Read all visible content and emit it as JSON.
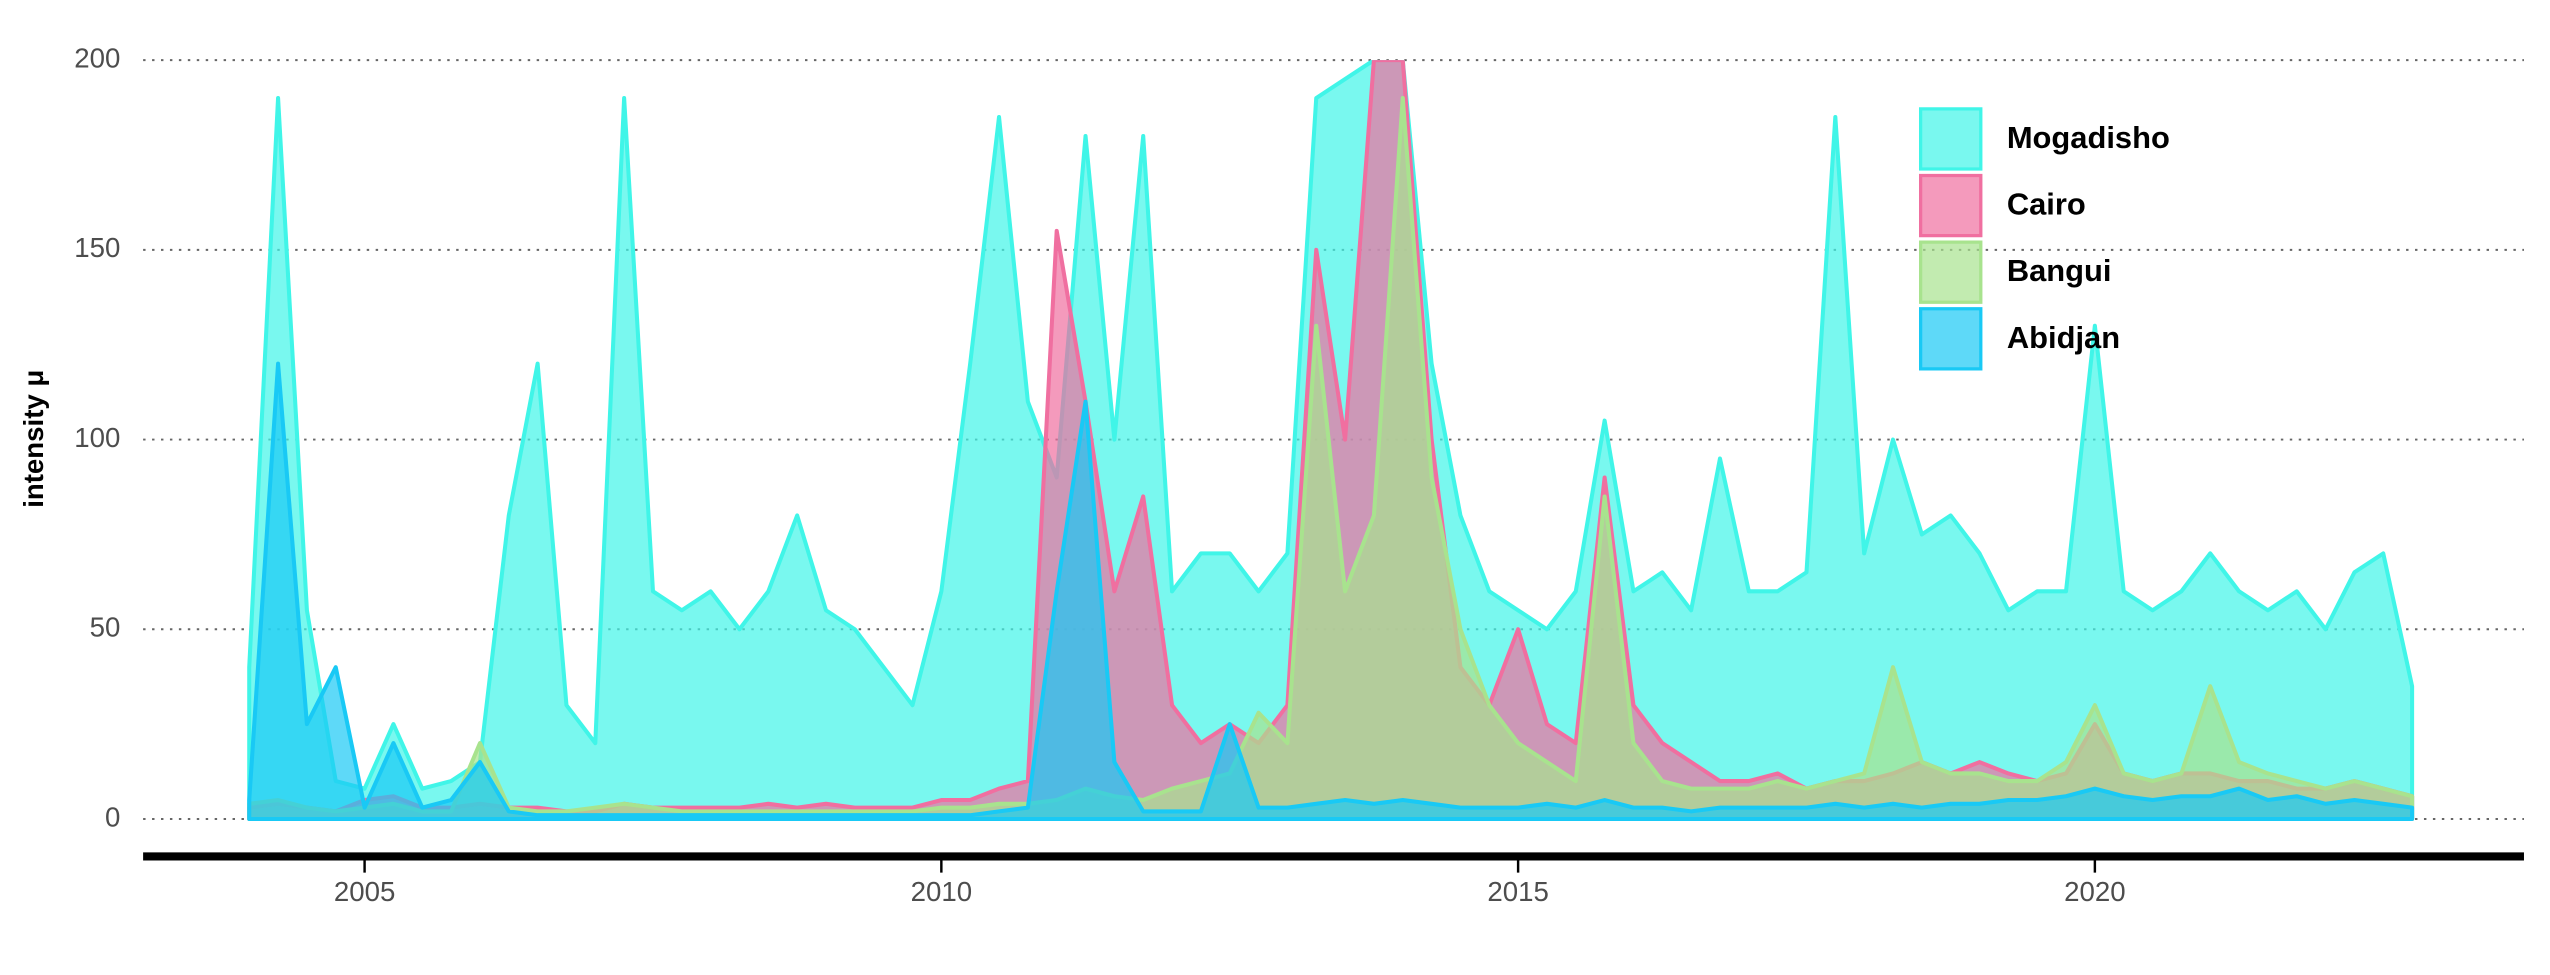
{
  "chart_data": {
    "type": "area",
    "y_label": "intensity μ",
    "xlim": [
      2003.08,
      2023.72
    ],
    "xticks": [
      2005,
      2010,
      2015,
      2020
    ],
    "ylim": [
      0,
      200
    ],
    "yticks": [
      0,
      50,
      100,
      150,
      200
    ],
    "grid": true,
    "legend": "top-right",
    "x": [
      2004,
      2004.25,
      2004.5,
      2004.75,
      2005,
      2005.25,
      2005.5,
      2005.75,
      2006,
      2006.25,
      2006.5,
      2006.75,
      2007,
      2007.25,
      2007.5,
      2007.75,
      2008,
      2008.25,
      2008.5,
      2008.75,
      2009,
      2009.25,
      2009.5,
      2009.75,
      2010,
      2010.25,
      2010.5,
      2010.75,
      2011,
      2011.25,
      2011.5,
      2011.75,
      2012,
      2012.25,
      2012.5,
      2012.75,
      2013,
      2013.25,
      2013.5,
      2013.75,
      2014,
      2014.25,
      2014.5,
      2014.75,
      2015,
      2015.25,
      2015.5,
      2015.75,
      2016,
      2016.25,
      2016.5,
      2016.75,
      2017,
      2017.25,
      2017.5,
      2017.75,
      2018,
      2018.25,
      2018.5,
      2018.75,
      2019,
      2019.25,
      2019.5,
      2019.75,
      2020,
      2020.25,
      2020.5,
      2020.75,
      2021,
      2021.25,
      2021.5,
      2021.75,
      2022,
      2022.25,
      2022.5,
      2022.75
    ],
    "series": [
      {
        "name": "Mogadisho",
        "color": "#40f5e8",
        "values": [
          40,
          190,
          55,
          10,
          8,
          25,
          8,
          10,
          15,
          80,
          120,
          30,
          20,
          190,
          60,
          55,
          60,
          50,
          60,
          80,
          55,
          50,
          40,
          30,
          60,
          120,
          185,
          110,
          90,
          180,
          100,
          180,
          60,
          70,
          70,
          60,
          70,
          190,
          195,
          200,
          200,
          120,
          80,
          60,
          55,
          50,
          60,
          105,
          60,
          65,
          55,
          95,
          60,
          60,
          65,
          185,
          70,
          100,
          75,
          80,
          70,
          55,
          60,
          60,
          130,
          60,
          55,
          60,
          70,
          60,
          55,
          60,
          50,
          65,
          70,
          35
        ]
      },
      {
        "name": "Cairo",
        "color": "#f06fa0",
        "values": [
          3,
          4,
          3,
          2,
          5,
          6,
          3,
          3,
          4,
          3,
          3,
          2,
          2,
          4,
          3,
          3,
          3,
          3,
          4,
          3,
          4,
          3,
          3,
          3,
          5,
          5,
          8,
          10,
          155,
          110,
          60,
          85,
          30,
          20,
          25,
          20,
          30,
          150,
          100,
          200,
          200,
          100,
          40,
          30,
          50,
          25,
          20,
          90,
          30,
          20,
          15,
          10,
          10,
          12,
          8,
          10,
          10,
          12,
          15,
          12,
          15,
          12,
          10,
          12,
          25,
          12,
          10,
          12,
          12,
          10,
          10,
          8,
          8,
          10,
          8,
          6
        ]
      },
      {
        "name": "Bangui",
        "color": "#a8e38e",
        "values": [
          4,
          5,
          3,
          2,
          3,
          4,
          2,
          2,
          20,
          3,
          2,
          2,
          3,
          4,
          3,
          2,
          2,
          2,
          2,
          2,
          2,
          2,
          2,
          2,
          3,
          3,
          4,
          4,
          5,
          8,
          6,
          5,
          8,
          10,
          12,
          28,
          20,
          130,
          60,
          80,
          190,
          90,
          50,
          30,
          20,
          15,
          10,
          85,
          20,
          10,
          8,
          8,
          8,
          10,
          8,
          10,
          12,
          40,
          15,
          12,
          12,
          10,
          10,
          15,
          30,
          12,
          10,
          12,
          35,
          15,
          12,
          10,
          8,
          10,
          8,
          6
        ]
      },
      {
        "name": "Abidjan",
        "color": "#19c9f5",
        "values": [
          5,
          120,
          25,
          40,
          3,
          20,
          3,
          5,
          15,
          2,
          1,
          1,
          1,
          1,
          1,
          1,
          1,
          1,
          1,
          1,
          1,
          1,
          1,
          1,
          1,
          1,
          2,
          3,
          60,
          110,
          15,
          2,
          2,
          2,
          25,
          3,
          3,
          4,
          5,
          4,
          5,
          4,
          3,
          3,
          3,
          4,
          3,
          5,
          3,
          3,
          2,
          3,
          3,
          3,
          3,
          4,
          3,
          4,
          3,
          4,
          4,
          5,
          5,
          6,
          8,
          6,
          5,
          6,
          6,
          8,
          5,
          6,
          4,
          5,
          4,
          3
        ]
      }
    ]
  }
}
